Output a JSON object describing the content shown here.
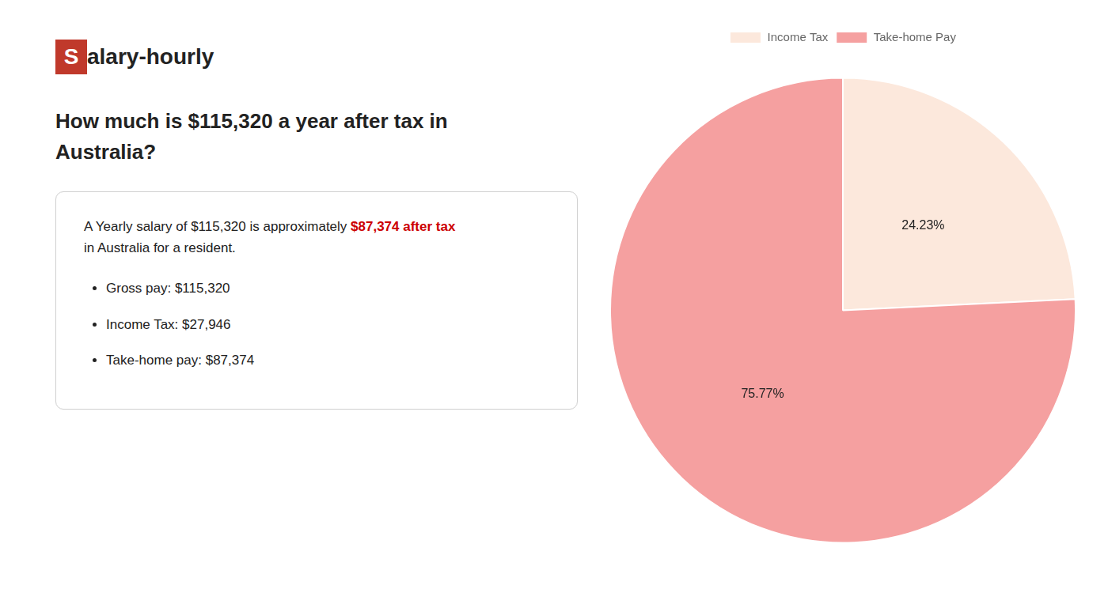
{
  "chart_data": {
    "type": "pie",
    "title": [
      "How much is $115,320 a year after tax in",
      "Australia?"
    ],
    "annotations": [
      {
        "text": "S",
        "color": "#c0392b"
      },
      {
        "text": "alary-hourly"
      },
      {
        "text": "A Yearly salary of $115,320 is approximately "
      },
      {
        "text": "$87,374 after tax",
        "color": "#cc0000"
      },
      {
        "text": "in Australia for a resident."
      },
      {
        "text": "Gross pay: $115,320"
      },
      {
        "text": "Income Tax: $27,946"
      },
      {
        "text": "Take-home pay: $87,374"
      }
    ],
    "categories": [
      "Income Tax",
      "Take-home Pay"
    ],
    "values": [
      24.23,
      75.77
    ],
    "value_labels": [
      "24.23%",
      "75.77%"
    ],
    "colors": [
      "#fce8dc",
      "#f5a0a0"
    ],
    "data_labels": true,
    "legend": "top"
  }
}
